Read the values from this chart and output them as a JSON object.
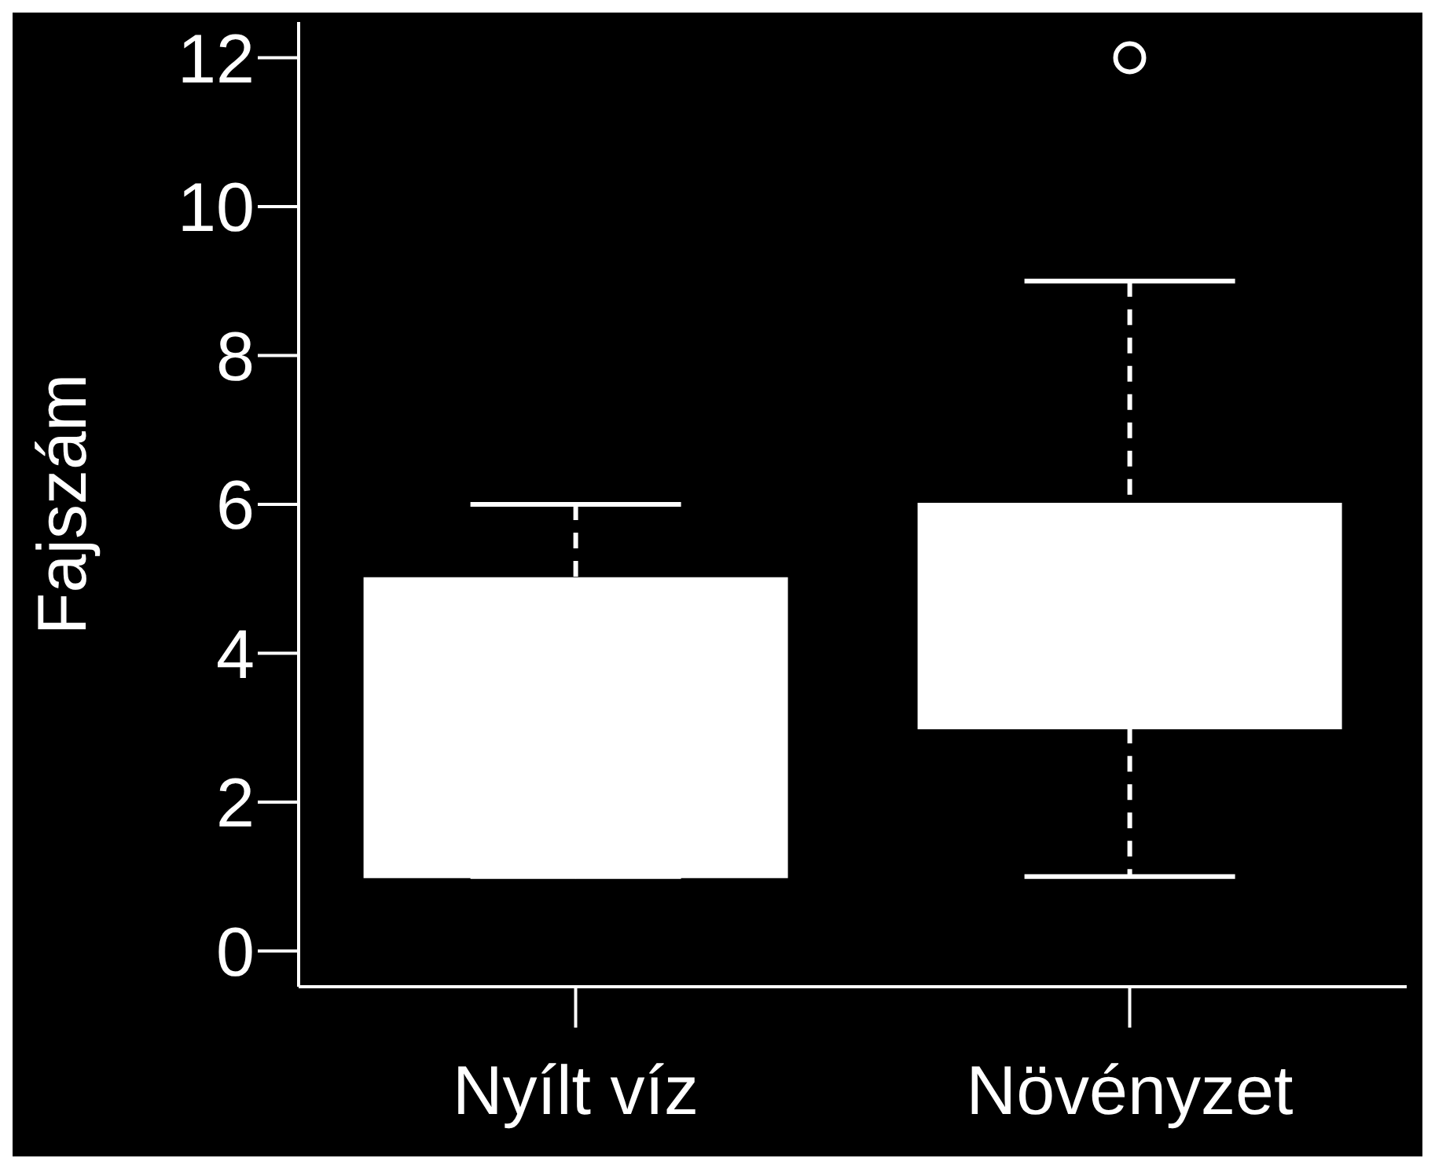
{
  "chart_data": {
    "type": "box",
    "ylabel": "Fajszám",
    "categories": [
      "Nyílt víz",
      "Növényzet"
    ],
    "color": "#ffffff",
    "boxes": [
      {
        "low": 1,
        "q1": 1,
        "q3": 5,
        "high": 6
      },
      {
        "low": 1,
        "q1": 3,
        "q3": 6,
        "high": 9,
        "outliers": [
          12
        ]
      }
    ],
    "ylim": [
      -0.48,
      12.48
    ],
    "yticks": [
      0,
      2,
      4,
      6,
      8,
      10,
      12
    ]
  }
}
